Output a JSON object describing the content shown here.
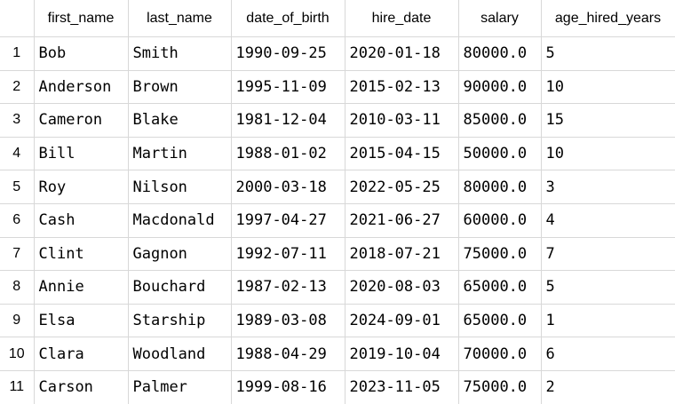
{
  "grid": {
    "columns": [
      "first_name",
      "last_name",
      "date_of_birth",
      "hire_date",
      "salary",
      "age_hired_years"
    ],
    "rows": [
      {
        "num": "1",
        "cells": [
          "Bob",
          "Smith",
          "1990-09-25",
          "2020-01-18",
          "80000.0",
          "5"
        ]
      },
      {
        "num": "2",
        "cells": [
          "Anderson",
          "Brown",
          "1995-11-09",
          "2015-02-13",
          "90000.0",
          "10"
        ]
      },
      {
        "num": "3",
        "cells": [
          "Cameron",
          "Blake",
          "1981-12-04",
          "2010-03-11",
          "85000.0",
          "15"
        ]
      },
      {
        "num": "4",
        "cells": [
          "Bill",
          "Martin",
          "1988-01-02",
          "2015-04-15",
          "50000.0",
          "10"
        ]
      },
      {
        "num": "5",
        "cells": [
          "Roy",
          "Nilson",
          "2000-03-18",
          "2022-05-25",
          "80000.0",
          "3"
        ]
      },
      {
        "num": "6",
        "cells": [
          "Cash",
          "Macdonald",
          "1997-04-27",
          "2021-06-27",
          "60000.0",
          "4"
        ]
      },
      {
        "num": "7",
        "cells": [
          "Clint",
          "Gagnon",
          "1992-07-11",
          "2018-07-21",
          "75000.0",
          "7"
        ]
      },
      {
        "num": "8",
        "cells": [
          "Annie",
          "Bouchard",
          "1987-02-13",
          "2020-08-03",
          "65000.0",
          "5"
        ]
      },
      {
        "num": "9",
        "cells": [
          "Elsa",
          "Starship",
          "1989-03-08",
          "2024-09-01",
          "65000.0",
          "1"
        ]
      },
      {
        "num": "10",
        "cells": [
          "Clara",
          "Woodland",
          "1988-04-29",
          "2019-10-04",
          "70000.0",
          "6"
        ]
      },
      {
        "num": "11",
        "cells": [
          "Carson",
          "Palmer",
          "1999-08-16",
          "2023-11-05",
          "75000.0",
          "2"
        ]
      }
    ]
  }
}
